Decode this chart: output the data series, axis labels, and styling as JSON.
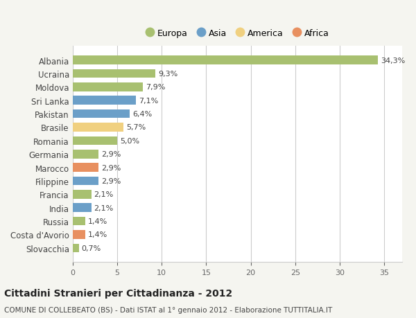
{
  "countries": [
    "Albania",
    "Ucraina",
    "Moldova",
    "Sri Lanka",
    "Pakistan",
    "Brasile",
    "Romania",
    "Germania",
    "Marocco",
    "Filippine",
    "Francia",
    "India",
    "Russia",
    "Costa d'Avorio",
    "Slovacchia"
  ],
  "values": [
    34.3,
    9.3,
    7.9,
    7.1,
    6.4,
    5.7,
    5.0,
    2.9,
    2.9,
    2.9,
    2.1,
    2.1,
    1.4,
    1.4,
    0.7
  ],
  "labels": [
    "34,3%",
    "9,3%",
    "7,9%",
    "7,1%",
    "6,4%",
    "5,7%",
    "5,0%",
    "2,9%",
    "2,9%",
    "2,9%",
    "2,1%",
    "2,1%",
    "1,4%",
    "1,4%",
    "0,7%"
  ],
  "colors": [
    "#a8c070",
    "#a8c070",
    "#a8c070",
    "#6b9fc8",
    "#6b9fc8",
    "#f0d080",
    "#a8c070",
    "#a8c070",
    "#e89060",
    "#6b9fc8",
    "#a8c070",
    "#6b9fc8",
    "#a8c070",
    "#e89060",
    "#a8c070"
  ],
  "continent_colors": {
    "Europa": "#a8c070",
    "Asia": "#6b9fc8",
    "America": "#f0d080",
    "Africa": "#e89060"
  },
  "legend_labels": [
    "Europa",
    "Asia",
    "America",
    "Africa"
  ],
  "title": "Cittadini Stranieri per Cittadinanza - 2012",
  "subtitle": "COMUNE DI COLLEBEATO (BS) - Dati ISTAT al 1° gennaio 2012 - Elaborazione TUTTITALIA.IT",
  "xlim": [
    0,
    37
  ],
  "xticks": [
    0,
    5,
    10,
    15,
    20,
    25,
    30,
    35
  ],
  "background_color": "#f5f5f0",
  "plot_background": "#ffffff",
  "grid_color": "#cccccc"
}
